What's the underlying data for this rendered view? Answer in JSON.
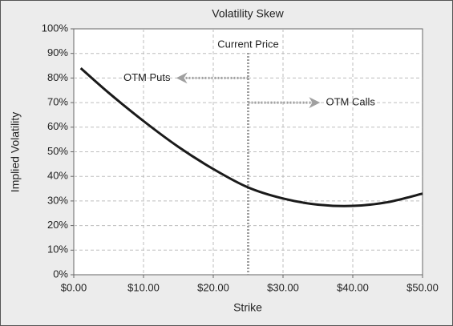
{
  "chart_data": {
    "type": "line",
    "title": "Volatility Skew",
    "x_label": "Strike",
    "y_label": "Implied Volatility",
    "x": [
      1,
      5,
      10,
      15,
      20,
      25,
      30,
      35,
      40,
      45,
      50
    ],
    "values": [
      84,
      74,
      62.5,
      52,
      43,
      35.5,
      31,
      28.5,
      28,
      29.5,
      33
    ],
    "color": "#1a1a1a",
    "xlim": [
      0,
      50
    ],
    "ylim": [
      0,
      100
    ],
    "xticks": [
      {
        "value": 0,
        "label": "$0.00"
      },
      {
        "value": 10,
        "label": "$10.00"
      },
      {
        "value": 20,
        "label": "$20.00"
      },
      {
        "value": 30,
        "label": "$30.00"
      },
      {
        "value": 40,
        "label": "$40.00"
      },
      {
        "value": 50,
        "label": "$50.00"
      }
    ],
    "yticks": [
      {
        "value": 0,
        "label": "0%"
      },
      {
        "value": 10,
        "label": "10%"
      },
      {
        "value": 20,
        "label": "20%"
      },
      {
        "value": 30,
        "label": "30%"
      },
      {
        "value": 40,
        "label": "40%"
      },
      {
        "value": 50,
        "label": "50%"
      },
      {
        "value": 60,
        "label": "60%"
      },
      {
        "value": 70,
        "label": "70%"
      },
      {
        "value": 80,
        "label": "80%"
      },
      {
        "value": 90,
        "label": "90%"
      },
      {
        "value": 100,
        "label": "100%"
      }
    ],
    "grid": true,
    "annotations": [
      {
        "text": "Current Price",
        "x": 25
      },
      {
        "text": "OTM Puts",
        "x": [
          25,
          15
        ],
        "y": 80
      },
      {
        "text": "OTM Calls",
        "x": [
          25,
          35
        ],
        "y": 70
      }
    ]
  }
}
